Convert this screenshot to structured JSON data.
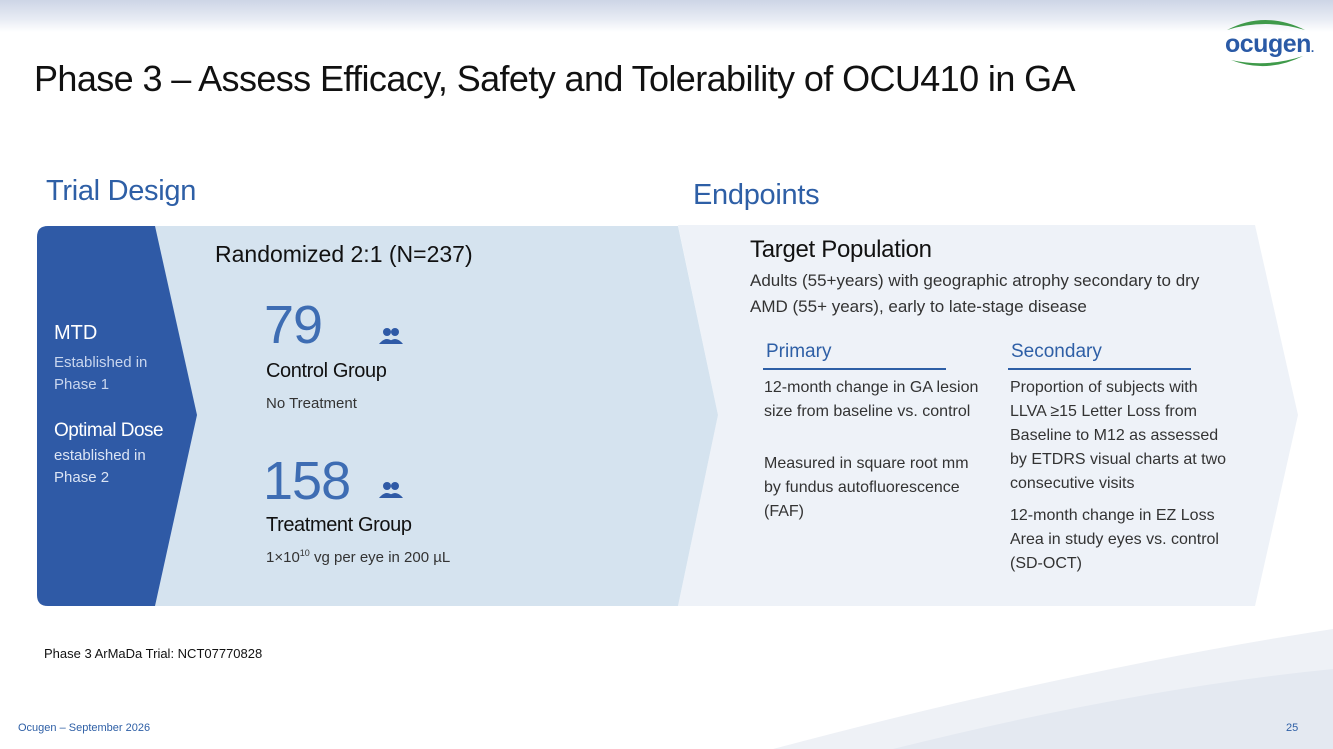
{
  "brand": {
    "logo_text": "ocugen",
    "logo_dot": ".",
    "primary_color": "#2e5fa6",
    "accent_green": "#3f9a4a"
  },
  "page": {
    "title": "Phase 3 – Assess Efficacy, Safety and Tolerability of OCU410 in GA"
  },
  "trial_design": {
    "heading": "Trial Design",
    "mtd": {
      "label": "MTD",
      "detail": "Established in Phase 1"
    },
    "optimal_dose": {
      "label": "Optimal Dose",
      "detail": "established in Phase 2"
    },
    "randomization": "Randomized 2:1 (N=237)",
    "control": {
      "count": "79",
      "label": "Control Group",
      "detail": "No Treatment",
      "icon": "people-icon"
    },
    "treatment": {
      "count": "158",
      "label": "Treatment Group",
      "detail_prefix": "1×10",
      "detail_sup": "10",
      "detail_suffix": " vg per eye in 200 µL",
      "icon": "people-icon"
    }
  },
  "endpoints": {
    "heading": "Endpoints",
    "target_population": {
      "heading": "Target Population",
      "description": "Adults (55+years) with geographic atrophy secondary to dry AMD (55+ years), early to late-stage disease"
    },
    "primary": {
      "heading": "Primary",
      "items": [
        "12-month change in GA lesion size from baseline vs. control",
        "Measured in square root mm  by fundus autofluorescence (FAF)"
      ]
    },
    "secondary": {
      "heading": "Secondary",
      "items": [
        "Proportion of subjects with LLVA ≥15 Letter Loss from Baseline to M12 as assessed by ETDRS visual charts at two consecutive visits",
        "12-month change in EZ Loss Area in study eyes vs. control (SD-OCT)"
      ]
    }
  },
  "trial_note": "Phase 3 ArMaDa Trial: NCT07770828",
  "footer": {
    "left": "Ocugen – September 2026",
    "page_number": "25"
  }
}
